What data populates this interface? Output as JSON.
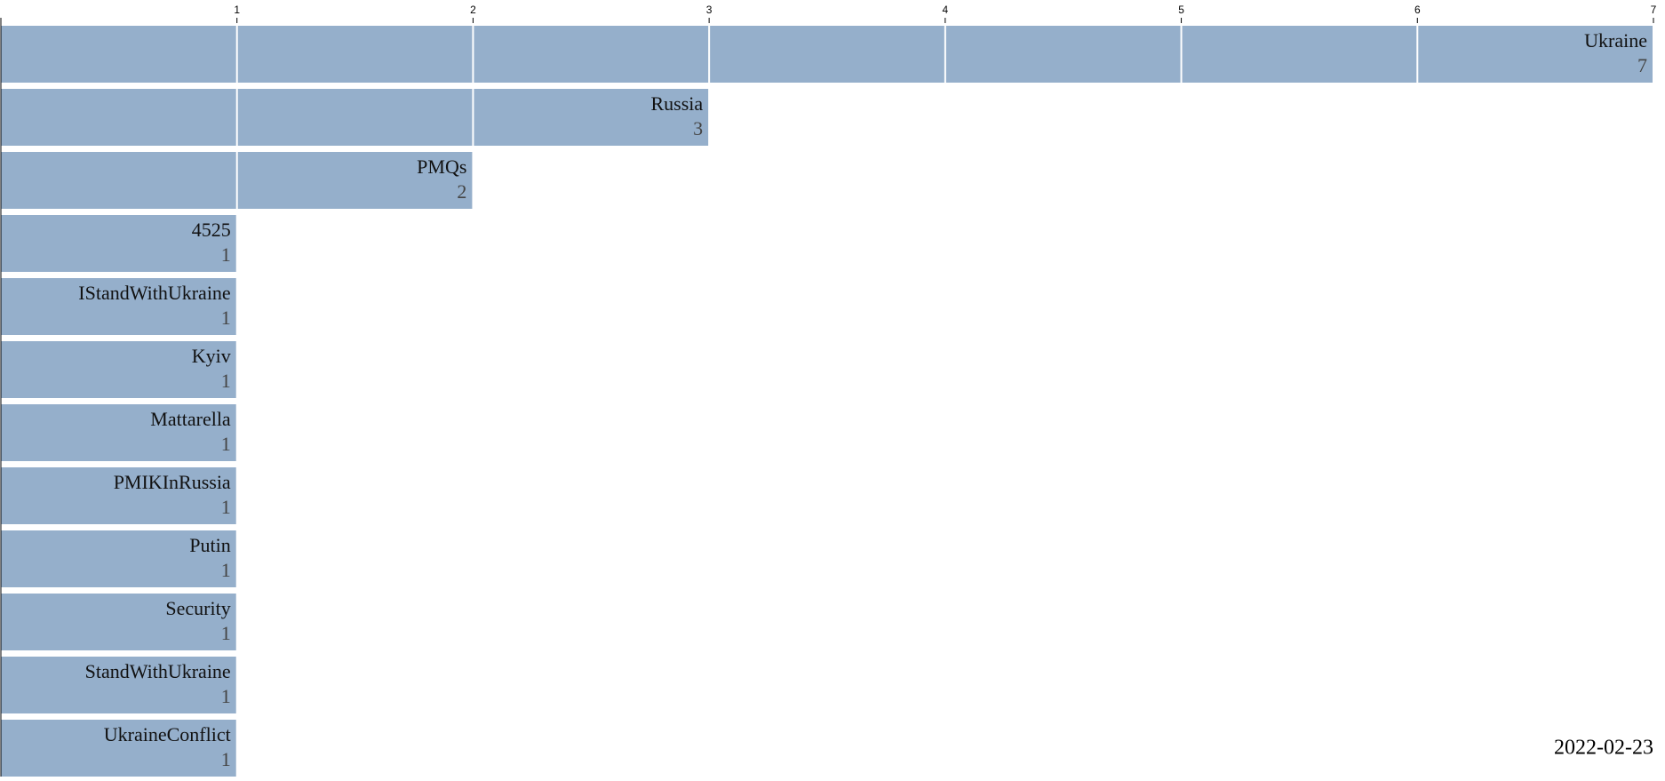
{
  "chart_data": {
    "type": "bar",
    "orientation": "horizontal",
    "categories": [
      "Ukraine",
      "Russia",
      "PMQs",
      "4525",
      "IStandWithUkraine",
      "Kyiv",
      "Mattarella",
      "PMIKInRussia",
      "Putin",
      "Security",
      "StandWithUkraine",
      "UkraineConflict"
    ],
    "values": [
      7,
      3,
      2,
      1,
      1,
      1,
      1,
      1,
      1,
      1,
      1,
      1
    ],
    "color": "#95afcb",
    "xlim": [
      0,
      7
    ],
    "xticks": [
      1,
      2,
      3,
      4,
      5,
      6,
      7
    ],
    "grid": true,
    "annotation": "2022-02-23"
  }
}
